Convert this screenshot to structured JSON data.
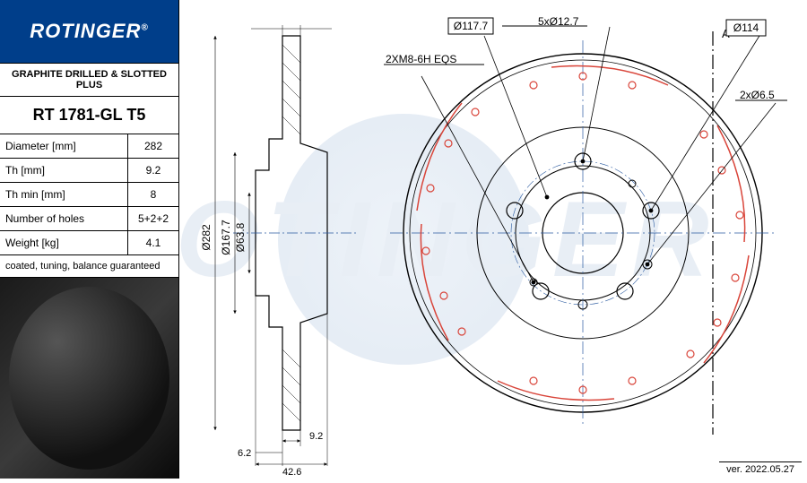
{
  "brand": "ROTINGER",
  "spec_title": "GRAPHITE DRILLED & SLOTTED PLUS",
  "part_number": "RT 1781-GL T5",
  "specs": [
    {
      "label": "Diameter [mm]",
      "value": "282"
    },
    {
      "label": "Th [mm]",
      "value": "9.2"
    },
    {
      "label": "Th min [mm]",
      "value": "8"
    },
    {
      "label": "Number of holes",
      "value": "5+2+2"
    },
    {
      "label": "Weight [kg]",
      "value": "4.1"
    }
  ],
  "spec_note": "coated, tuning, balance guaranteed",
  "version": "ver. 2022.05.27",
  "callouts": {
    "c1": "Ø117.7",
    "c2": "5xØ12.7",
    "c3": "Ø114",
    "c4": "2XM8-6H  EQS",
    "c5": "2xØ6.5"
  },
  "dims": {
    "outer_dia": "Ø282",
    "mid_dia": "Ø167.7",
    "inner_dia": "Ø63.8",
    "width1": "9.2",
    "width2": "6.2",
    "width3": "42.6"
  },
  "section_letter": "A",
  "colors": {
    "line": "#000000",
    "accent": "#d9453a",
    "leader": "#000000",
    "centerline": "#2a5aa0"
  }
}
